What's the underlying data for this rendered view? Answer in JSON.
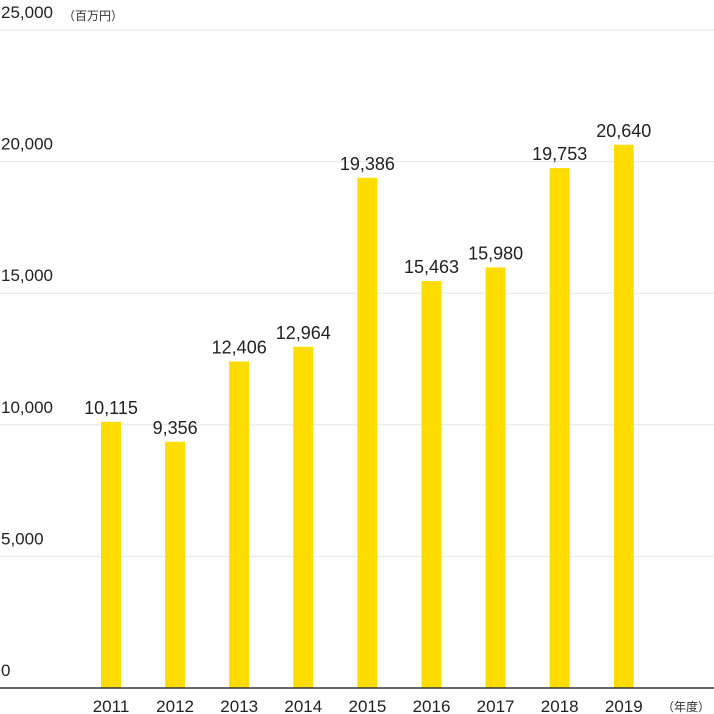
{
  "chart_data": {
    "type": "bar",
    "categories": [
      "2011",
      "2012",
      "2013",
      "2014",
      "2015",
      "2016",
      "2017",
      "2018",
      "2019"
    ],
    "values": [
      10115,
      9356,
      12406,
      12964,
      19386,
      15463,
      15980,
      19753,
      20640
    ],
    "value_labels": [
      "10,115",
      "9,356",
      "12,406",
      "12,964",
      "19,386",
      "15,463",
      "15,980",
      "19,753",
      "20,640"
    ],
    "ylim": [
      0,
      25000
    ],
    "yticks": [
      0,
      5000,
      10000,
      15000,
      20000,
      25000
    ],
    "ytick_labels": [
      "0",
      "5,000",
      "10,000",
      "15,000",
      "20,000",
      "25,000"
    ],
    "y_unit": "（百万円）",
    "x_unit": "（年度）",
    "grid": true,
    "colors": {
      "bar": "#FFDC00",
      "grid": "#e6e6e6",
      "axis": "#333333"
    }
  }
}
